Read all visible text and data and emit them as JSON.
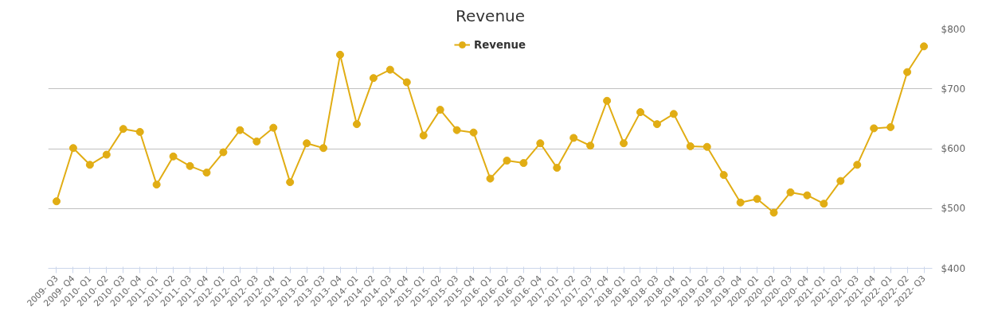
{
  "chart_data": {
    "type": "line",
    "title": "Revenue",
    "categories": [
      "2009- Q3",
      "2009- Q4",
      "2010- Q1",
      "2010- Q2",
      "2010- Q3",
      "2010- Q4",
      "2011- Q1",
      "2011- Q2",
      "2011- Q3",
      "2011- Q4",
      "2012- Q1",
      "2012- Q2",
      "2012- Q3",
      "2012- Q4",
      "2013- Q1",
      "2013- Q2",
      "2013- Q3",
      "2013- Q4",
      "2014- Q1",
      "2014- Q2",
      "2014- Q3",
      "2014- Q4",
      "2015- Q1",
      "2015- Q2",
      "2015- Q3",
      "2015- Q4",
      "2016- Q1",
      "2016- Q2",
      "2016- Q3",
      "2016- Q4",
      "2017- Q1",
      "2017- Q2",
      "2017- Q3",
      "2017- Q4",
      "2018- Q1",
      "2018- Q2",
      "2018- Q3",
      "2018- Q4",
      "2019- Q1",
      "2019- Q2",
      "2019- Q3",
      "2019- Q4",
      "2020- Q1",
      "2020- Q2",
      "2020- Q3",
      "2020- Q4",
      "2021- Q1",
      "2021- Q2",
      "2021- Q3",
      "2021- Q4",
      "2022- Q1",
      "2022- Q2",
      "2022- Q3"
    ],
    "series": [
      {
        "name": "Revenue",
        "color": "#e1ad14",
        "values": [
          512,
          601,
          573,
          590,
          633,
          628,
          540,
          587,
          571,
          560,
          594,
          631,
          612,
          635,
          544,
          609,
          601,
          757,
          641,
          718,
          732,
          711,
          622,
          665,
          631,
          627,
          550,
          580,
          576,
          609,
          568,
          618,
          605,
          680,
          609,
          661,
          641,
          658,
          604,
          603,
          556,
          510,
          516,
          493,
          527,
          522,
          508,
          546,
          573,
          634,
          636,
          728,
          771
        ]
      }
    ],
    "ylim": [
      400,
      800
    ],
    "yticks": [
      {
        "value": 400,
        "label": "$400"
      },
      {
        "value": 500,
        "label": "$500"
      },
      {
        "value": 600,
        "label": "$600"
      },
      {
        "value": 700,
        "label": "$700"
      },
      {
        "value": 800,
        "label": "$800"
      }
    ],
    "grid": "y",
    "legend": "top",
    "marker": "circle",
    "line_style": "solid"
  }
}
